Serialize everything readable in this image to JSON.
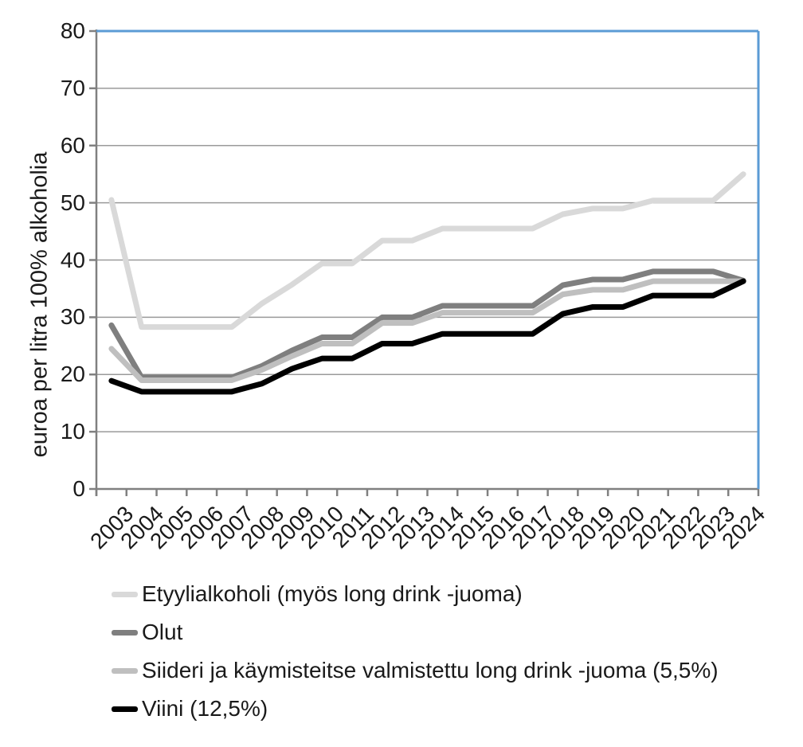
{
  "chart_data": {
    "type": "line",
    "title": "",
    "ylabel": "euroa per litra 100% alkoholia",
    "xlabel": "",
    "ylim": [
      0,
      80
    ],
    "ytick_step": 10,
    "yticks": [
      "0",
      "10",
      "20",
      "30",
      "40",
      "50",
      "60",
      "70",
      "80"
    ],
    "grid": true,
    "legend_position": "bottom-left",
    "axis_color": "#808080",
    "grid_color": "#9a9a9a",
    "plot_border_color": "#5b9bd5",
    "x": [
      "2003",
      "2004",
      "2005",
      "2006",
      "2007",
      "2008",
      "2009",
      "2010",
      "2011",
      "2012",
      "2013",
      "2014",
      "2015",
      "2016",
      "2017",
      "2018",
      "2019",
      "2020",
      "2021",
      "2022",
      "2023",
      "2024"
    ],
    "series": [
      {
        "name": "Etyylialkoholi (myös long drink -juoma)",
        "color": "#d9d9d9",
        "values": [
          50.5,
          28.3,
          28.3,
          28.3,
          28.3,
          32.4,
          35.7,
          39.4,
          39.4,
          43.4,
          43.4,
          45.5,
          45.5,
          45.5,
          45.5,
          48.0,
          49.0,
          49.0,
          50.4,
          50.4,
          50.4,
          55.0
        ]
      },
      {
        "name": "Olut",
        "color": "#7f7f7f",
        "values": [
          28.6,
          19.5,
          19.5,
          19.5,
          19.5,
          21.5,
          24.2,
          26.5,
          26.5,
          30.0,
          30.0,
          32.0,
          32.0,
          32.0,
          32.0,
          35.6,
          36.6,
          36.6,
          38.0,
          38.0,
          38.0,
          36.4
        ]
      },
      {
        "name": "Siideri ja käymisteitse valmistettu long drink -juoma (5,5%)",
        "color": "#bfbfbf",
        "values": [
          24.5,
          19.0,
          19.0,
          19.0,
          19.0,
          20.8,
          23.2,
          25.4,
          25.4,
          29.0,
          29.0,
          30.8,
          30.8,
          30.8,
          30.8,
          34.0,
          34.8,
          34.8,
          36.3,
          36.3,
          36.3,
          36.3
        ]
      },
      {
        "name": "Viini (12,5%)",
        "color": "#000000",
        "values": [
          18.9,
          17.0,
          17.0,
          17.0,
          17.0,
          18.4,
          21.0,
          22.8,
          22.8,
          25.4,
          25.4,
          27.1,
          27.1,
          27.1,
          27.1,
          30.6,
          31.8,
          31.8,
          33.8,
          33.8,
          33.8,
          36.3
        ]
      }
    ]
  }
}
